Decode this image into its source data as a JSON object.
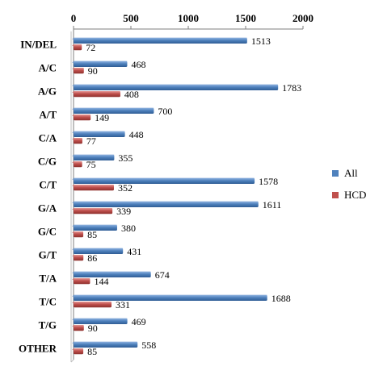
{
  "chart_data": {
    "type": "bar",
    "orientation": "horizontal",
    "title": "",
    "xlabel": "",
    "ylabel": "",
    "xlim": [
      0,
      2000
    ],
    "x_ticks": [
      "0",
      "500",
      "1000",
      "1500",
      "2000"
    ],
    "x_axis_position": "top",
    "grid": false,
    "legend_position": "right",
    "categories": [
      "IN/DEL",
      "A/C",
      "A/G",
      "A/T",
      "C/A",
      "C/G",
      "C/T",
      "G/A",
      "G/C",
      "G/T",
      "T/A",
      "T/C",
      "T/G",
      "OTHER"
    ],
    "series": [
      {
        "name": "All",
        "color": "#4f81bd",
        "values": [
          1513,
          468,
          1783,
          700,
          448,
          355,
          1578,
          1611,
          380,
          431,
          674,
          1688,
          469,
          558
        ]
      },
      {
        "name": "HCD",
        "color": "#c0504d",
        "values": [
          72,
          90,
          408,
          149,
          77,
          75,
          352,
          339,
          85,
          86,
          144,
          331,
          90,
          85
        ]
      }
    ]
  }
}
